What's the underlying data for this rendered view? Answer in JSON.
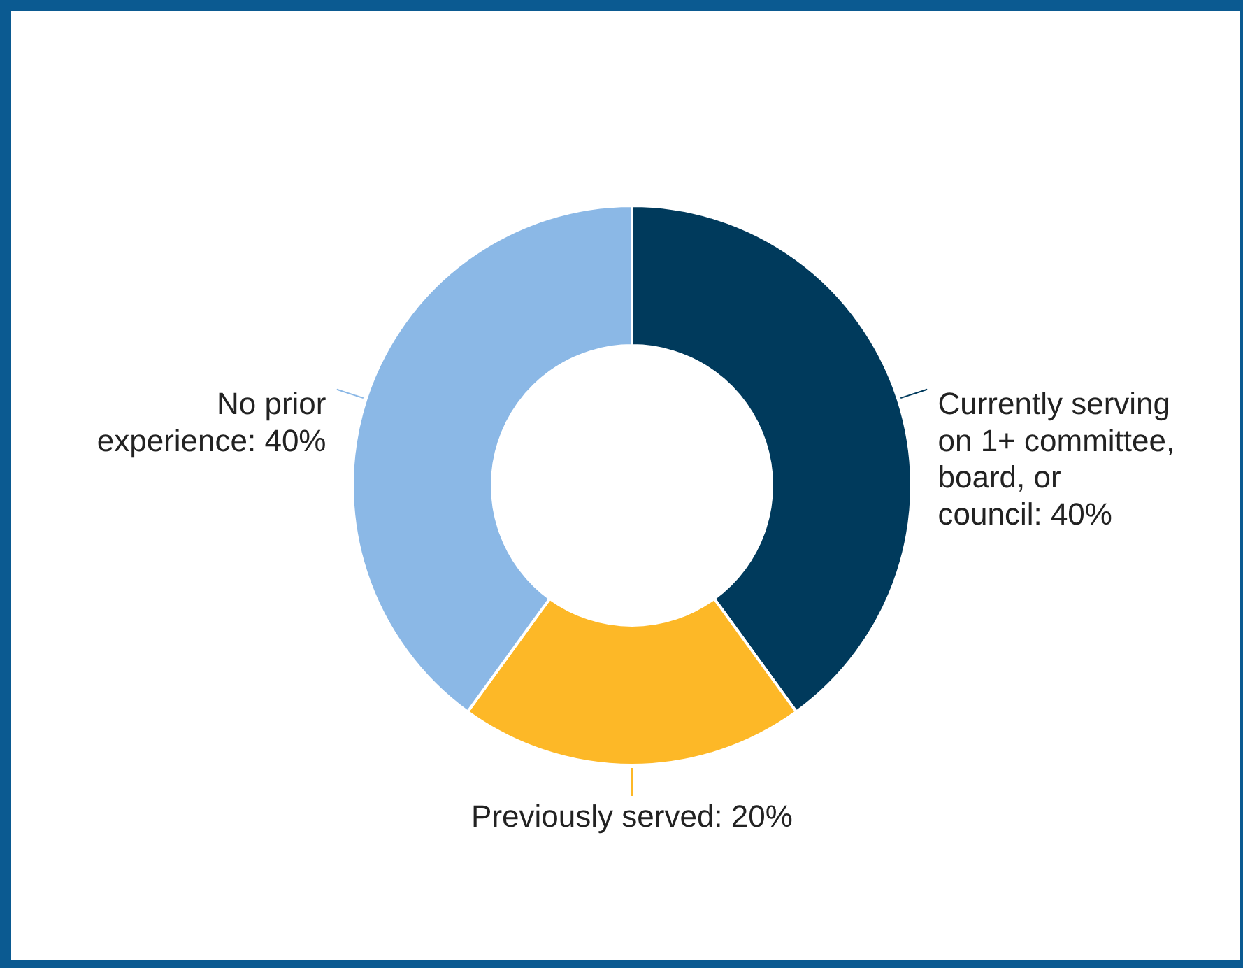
{
  "chart_data": {
    "type": "donut",
    "categories": [
      "Currently serving on 1+ committee, board, or council",
      "Previously served",
      "No prior experience"
    ],
    "values": [
      40,
      20,
      40
    ],
    "value_labels": [
      "40%",
      "20%",
      "40%"
    ],
    "colors": [
      "#003a5c",
      "#fdb827",
      "#8bb8e6"
    ],
    "legend": false
  }
}
